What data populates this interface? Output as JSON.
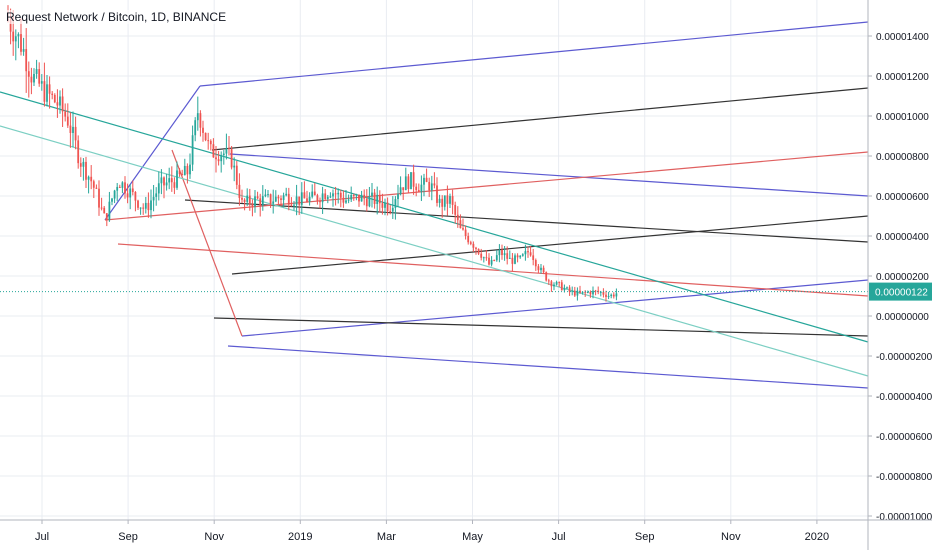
{
  "chart_data": {
    "type": "candlestick",
    "title": "Request Network / Bitcoin, 1D, BINANCE",
    "price_axis": {
      "ticks": [
        "0.00001400",
        "0.00001200",
        "0.00001000",
        "0.00000800",
        "0.00000600",
        "0.00000400",
        "0.00000200",
        "0.00000000",
        "-0.00000200",
        "-0.00000400",
        "-0.00000600",
        "-0.00000800",
        "-0.00001000"
      ],
      "last_price": "0.00000122",
      "ylim": [
        -1e-05,
        1.53e-05
      ]
    },
    "time_axis": {
      "ticks": [
        "Jul",
        "Sep",
        "Nov",
        "2019",
        "Mar",
        "May",
        "Jul",
        "Sep",
        "Nov",
        "2020"
      ]
    },
    "grid": true,
    "colors": {
      "up": "#26a69a",
      "down": "#ef5350",
      "grid": "#e9ecf2",
      "blue_line": "#5c5ad1",
      "black_line": "#333333",
      "red_line": "#e06060",
      "teal_line": "#26a69a",
      "light_teal_line": "#7ccfc3",
      "last_price_bg": "#26a69a"
    },
    "price_path": [
      [
        0,
        1.55e-05
      ],
      [
        12,
        1.45e-05
      ],
      [
        22,
        1.35e-05
      ],
      [
        32,
        1.2e-05
      ],
      [
        45,
        1.12e-05
      ],
      [
        58,
        1.06e-05
      ],
      [
        68,
        9.8e-06
      ],
      [
        80,
        7.8e-06
      ],
      [
        92,
        6.7e-06
      ],
      [
        105,
        4.8e-06
      ],
      [
        118,
        6.8e-06
      ],
      [
        130,
        6.2e-06
      ],
      [
        145,
        5.3e-06
      ],
      [
        160,
        6.5e-06
      ],
      [
        175,
        6.8e-06
      ],
      [
        188,
        7.2e-06
      ],
      [
        198,
        1.03e-05
      ],
      [
        210,
        8.2e-06
      ],
      [
        222,
        8.2e-06
      ],
      [
        232,
        7.8e-06
      ],
      [
        242,
        5.6e-06
      ],
      [
        255,
        5.8e-06
      ],
      [
        270,
        5.8e-06
      ],
      [
        285,
        6e-06
      ],
      [
        300,
        5.8e-06
      ],
      [
        315,
        5.9e-06
      ],
      [
        330,
        6.3e-06
      ],
      [
        345,
        5.8e-06
      ],
      [
        360,
        5.9e-06
      ],
      [
        375,
        5.8e-06
      ],
      [
        390,
        5.5e-06
      ],
      [
        400,
        6.5e-06
      ],
      [
        410,
        6.8e-06
      ],
      [
        420,
        6.5e-06
      ],
      [
        430,
        6.6e-06
      ],
      [
        440,
        5.6e-06
      ],
      [
        450,
        5.8e-06
      ],
      [
        460,
        4.3e-06
      ],
      [
        470,
        3.8e-06
      ],
      [
        480,
        3.2e-06
      ],
      [
        490,
        2.5e-06
      ],
      [
        500,
        3.2e-06
      ],
      [
        510,
        2.8e-06
      ],
      [
        520,
        2.8e-06
      ],
      [
        530,
        3.3e-06
      ],
      [
        540,
        2.3e-06
      ],
      [
        550,
        1.7e-06
      ],
      [
        560,
        1.5e-06
      ],
      [
        570,
        1.2e-06
      ],
      [
        580,
        1.1e-06
      ],
      [
        590,
        1.2e-06
      ],
      [
        600,
        1.2e-06
      ],
      [
        610,
        1e-06
      ],
      [
        620,
        1.22e-06
      ]
    ],
    "drawings": [
      {
        "color": "blue_line",
        "points": [
          [
            200,
            1.15e-05
          ],
          [
            868,
            1.47e-05
          ]
        ]
      },
      {
        "color": "blue_line",
        "points": [
          [
            200,
            1.15e-05
          ],
          [
            105,
            4.8e-06
          ]
        ]
      },
      {
        "color": "blue_line",
        "points": [
          [
            230,
            8.1e-06
          ],
          [
            868,
            6e-06
          ]
        ]
      },
      {
        "color": "blue_line",
        "points": [
          [
            242,
            -1e-06
          ],
          [
            868,
            1.8e-06
          ]
        ]
      },
      {
        "color": "blue_line",
        "points": [
          [
            228,
            -1.5e-06
          ],
          [
            868,
            -3.6e-06
          ]
        ]
      },
      {
        "color": "black_line",
        "points": [
          [
            212,
            8.3e-06
          ],
          [
            868,
            1.14e-05
          ]
        ]
      },
      {
        "color": "black_line",
        "points": [
          [
            185,
            5.8e-06
          ],
          [
            868,
            3.7e-06
          ]
        ]
      },
      {
        "color": "black_line",
        "points": [
          [
            232,
            2.1e-06
          ],
          [
            868,
            5e-06
          ]
        ]
      },
      {
        "color": "black_line",
        "points": [
          [
            214,
            -1e-07
          ],
          [
            868,
            -1e-06
          ]
        ]
      },
      {
        "color": "red_line",
        "points": [
          [
            105,
            4.8e-06
          ],
          [
            868,
            8.2e-06
          ]
        ]
      },
      {
        "color": "red_line",
        "points": [
          [
            118,
            3.6e-06
          ],
          [
            868,
            1e-06
          ]
        ]
      },
      {
        "color": "red_line",
        "points": [
          [
            172,
            8.3e-06
          ],
          [
            242,
            -1e-06
          ]
        ]
      },
      {
        "color": "teal_line",
        "points": [
          [
            0,
            1.12e-05
          ],
          [
            868,
            -1.3e-06
          ]
        ]
      },
      {
        "color": "light_teal_line",
        "points": [
          [
            0,
            9.5e-06
          ],
          [
            868,
            -3e-06
          ]
        ]
      }
    ]
  }
}
